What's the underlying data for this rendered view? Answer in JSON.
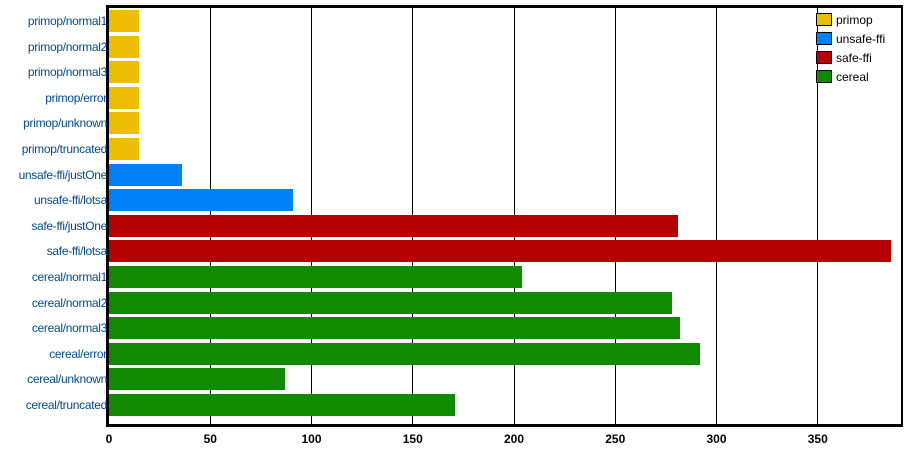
{
  "chart_data": {
    "type": "bar",
    "orientation": "horizontal",
    "title": "",
    "xlabel": "",
    "ylabel": "",
    "xlim": [
      0,
      392
    ],
    "x_ticks": [
      "0",
      "50",
      "100",
      "150",
      "200",
      "250",
      "300",
      "350"
    ],
    "grid": true,
    "legend_position": "top-right",
    "legend": [
      {
        "name": "primop",
        "color": "#ecbd00"
      },
      {
        "name": "unsafe-ffi",
        "color": "#0080f7"
      },
      {
        "name": "safe-ffi",
        "color": "#b40000"
      },
      {
        "name": "cereal",
        "color": "#128a00"
      }
    ],
    "categories": [
      "primop/normal1",
      "primop/normal2",
      "primop/normal3",
      "primop/error",
      "primop/unknown",
      "primop/truncated",
      "unsafe-ffi/justOne",
      "unsafe-ffi/lotsa",
      "safe-ffi/justOne",
      "safe-ffi/lotsa",
      "cereal/normal1",
      "cereal/normal2",
      "cereal/normal3",
      "cereal/error",
      "cereal/unknown",
      "cereal/truncated"
    ],
    "bars": [
      {
        "label": "primop/normal1",
        "series": "primop",
        "value": 15,
        "color": "#ecbd00"
      },
      {
        "label": "primop/normal2",
        "series": "primop",
        "value": 15,
        "color": "#ecbd00"
      },
      {
        "label": "primop/normal3",
        "series": "primop",
        "value": 15,
        "color": "#ecbd00"
      },
      {
        "label": "primop/error",
        "series": "primop",
        "value": 15,
        "color": "#ecbd00"
      },
      {
        "label": "primop/unknown",
        "series": "primop",
        "value": 15,
        "color": "#ecbd00"
      },
      {
        "label": "primop/truncated",
        "series": "primop",
        "value": 15,
        "color": "#ecbd00"
      },
      {
        "label": "unsafe-ffi/justOne",
        "series": "unsafe-ffi",
        "value": 36,
        "color": "#0080f7"
      },
      {
        "label": "unsafe-ffi/lotsa",
        "series": "unsafe-ffi",
        "value": 91,
        "color": "#0080f7"
      },
      {
        "label": "safe-ffi/justOne",
        "series": "safe-ffi",
        "value": 281,
        "color": "#b40000"
      },
      {
        "label": "safe-ffi/lotsa",
        "series": "safe-ffi",
        "value": 386,
        "color": "#b40000"
      },
      {
        "label": "cereal/normal1",
        "series": "cereal",
        "value": 204,
        "color": "#128a00"
      },
      {
        "label": "cereal/normal2",
        "series": "cereal",
        "value": 278,
        "color": "#128a00"
      },
      {
        "label": "cereal/normal3",
        "series": "cereal",
        "value": 282,
        "color": "#128a00"
      },
      {
        "label": "cereal/error",
        "series": "cereal",
        "value": 292,
        "color": "#128a00"
      },
      {
        "label": "cereal/unknown",
        "series": "cereal",
        "value": 87,
        "color": "#128a00"
      },
      {
        "label": "cereal/truncated",
        "series": "cereal",
        "value": 171,
        "color": "#128a00"
      }
    ]
  }
}
